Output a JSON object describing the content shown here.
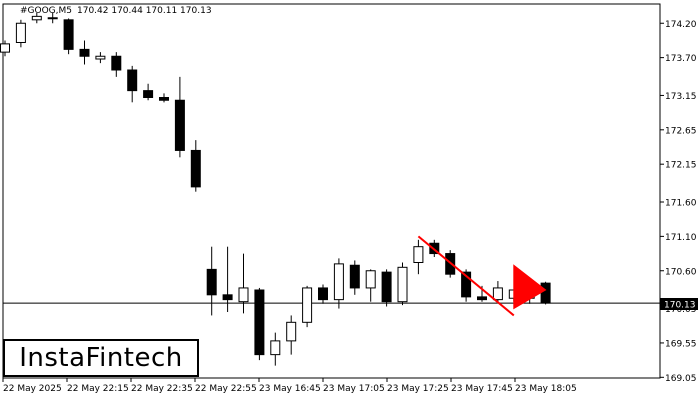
{
  "header": {
    "symbol": "#GOOG,M5",
    "ohlc": "170.42 170.44 170.11 170.13"
  },
  "logo": {
    "text": "InstaFintech"
  },
  "current_price_label": "170.13",
  "colors": {
    "background": "#ffffff",
    "candle_outline": "#000000",
    "bull_body": "#ffffff",
    "bear_body": "#000000",
    "pattern": "#ff0000",
    "price_box": "#000000"
  },
  "chart_data": {
    "type": "candlestick",
    "ylim": [
      169.04,
      174.48
    ],
    "y_ticks": [
      "174.20",
      "173.70",
      "173.15",
      "172.65",
      "172.15",
      "171.60",
      "171.10",
      "170.60",
      "170.05",
      "169.55",
      "169.05"
    ],
    "x_ticks": [
      "22 May 2025",
      "22 May 22:15",
      "22 May 22:35",
      "22 May 22:55",
      "23 May 16:45",
      "23 May 17:05",
      "23 May 17:25",
      "23 May 17:45",
      "23 May 18:05"
    ],
    "current_price": 170.13,
    "candles": [
      {
        "o": 173.78,
        "h": 173.95,
        "l": 173.72,
        "c": 173.9
      },
      {
        "o": 173.92,
        "h": 174.25,
        "l": 173.85,
        "c": 174.2
      },
      {
        "o": 174.25,
        "h": 174.35,
        "l": 174.2,
        "c": 174.3
      },
      {
        "o": 174.28,
        "h": 174.35,
        "l": 174.2,
        "c": 174.28
      },
      {
        "o": 174.25,
        "h": 174.27,
        "l": 173.75,
        "c": 173.82
      },
      {
        "o": 173.82,
        "h": 173.95,
        "l": 173.6,
        "c": 173.72
      },
      {
        "o": 173.68,
        "h": 173.78,
        "l": 173.62,
        "c": 173.72
      },
      {
        "o": 173.72,
        "h": 173.78,
        "l": 173.42,
        "c": 173.52
      },
      {
        "o": 173.52,
        "h": 173.58,
        "l": 173.05,
        "c": 173.22
      },
      {
        "o": 173.22,
        "h": 173.32,
        "l": 173.08,
        "c": 173.12
      },
      {
        "o": 173.12,
        "h": 173.18,
        "l": 173.05,
        "c": 173.08
      },
      {
        "o": 173.08,
        "h": 173.42,
        "l": 172.25,
        "c": 172.35
      },
      {
        "o": 172.35,
        "h": 172.5,
        "l": 171.75,
        "c": 171.82
      },
      {
        "o": 170.62,
        "h": 170.95,
        "l": 169.95,
        "c": 170.25
      },
      {
        "o": 170.25,
        "h": 170.95,
        "l": 170.0,
        "c": 170.18
      },
      {
        "o": 170.15,
        "h": 170.85,
        "l": 169.98,
        "c": 170.35
      },
      {
        "o": 170.32,
        "h": 170.35,
        "l": 169.3,
        "c": 169.38
      },
      {
        "o": 169.38,
        "h": 169.7,
        "l": 169.22,
        "c": 169.58
      },
      {
        "o": 169.58,
        "h": 169.95,
        "l": 169.38,
        "c": 169.85
      },
      {
        "o": 169.85,
        "h": 170.38,
        "l": 169.78,
        "c": 170.35
      },
      {
        "o": 170.35,
        "h": 170.4,
        "l": 170.12,
        "c": 170.18
      },
      {
        "o": 170.18,
        "h": 170.78,
        "l": 170.05,
        "c": 170.7
      },
      {
        "o": 170.68,
        "h": 170.75,
        "l": 170.25,
        "c": 170.35
      },
      {
        "o": 170.35,
        "h": 170.62,
        "l": 170.15,
        "c": 170.6
      },
      {
        "o": 170.58,
        "h": 170.62,
        "l": 170.08,
        "c": 170.15
      },
      {
        "o": 170.15,
        "h": 170.72,
        "l": 170.1,
        "c": 170.65
      },
      {
        "o": 170.72,
        "h": 171.05,
        "l": 170.55,
        "c": 170.95
      },
      {
        "o": 171.0,
        "h": 171.05,
        "l": 170.8,
        "c": 170.85
      },
      {
        "o": 170.85,
        "h": 170.9,
        "l": 170.5,
        "c": 170.55
      },
      {
        "o": 170.58,
        "h": 170.62,
        "l": 170.15,
        "c": 170.22
      },
      {
        "o": 170.22,
        "h": 170.38,
        "l": 170.15,
        "c": 170.18
      },
      {
        "o": 170.18,
        "h": 170.45,
        "l": 170.15,
        "c": 170.35
      },
      {
        "o": 170.2,
        "h": 170.32,
        "l": 170.15,
        "c": 170.32
      },
      {
        "o": 170.2,
        "h": 170.45,
        "l": 170.12,
        "c": 170.42
      },
      {
        "o": 170.42,
        "h": 170.44,
        "l": 170.11,
        "c": 170.13
      }
    ],
    "pattern_overlay": {
      "color": "#ff0000",
      "pole": [
        {
          "i": 26,
          "p": 171.1
        },
        {
          "i": 32,
          "p": 169.95
        }
      ],
      "flag": [
        {
          "i": 32,
          "p": 170.68
        },
        {
          "i": 32,
          "p": 170.05
        },
        {
          "i": 34,
          "p": 170.32
        }
      ]
    }
  }
}
